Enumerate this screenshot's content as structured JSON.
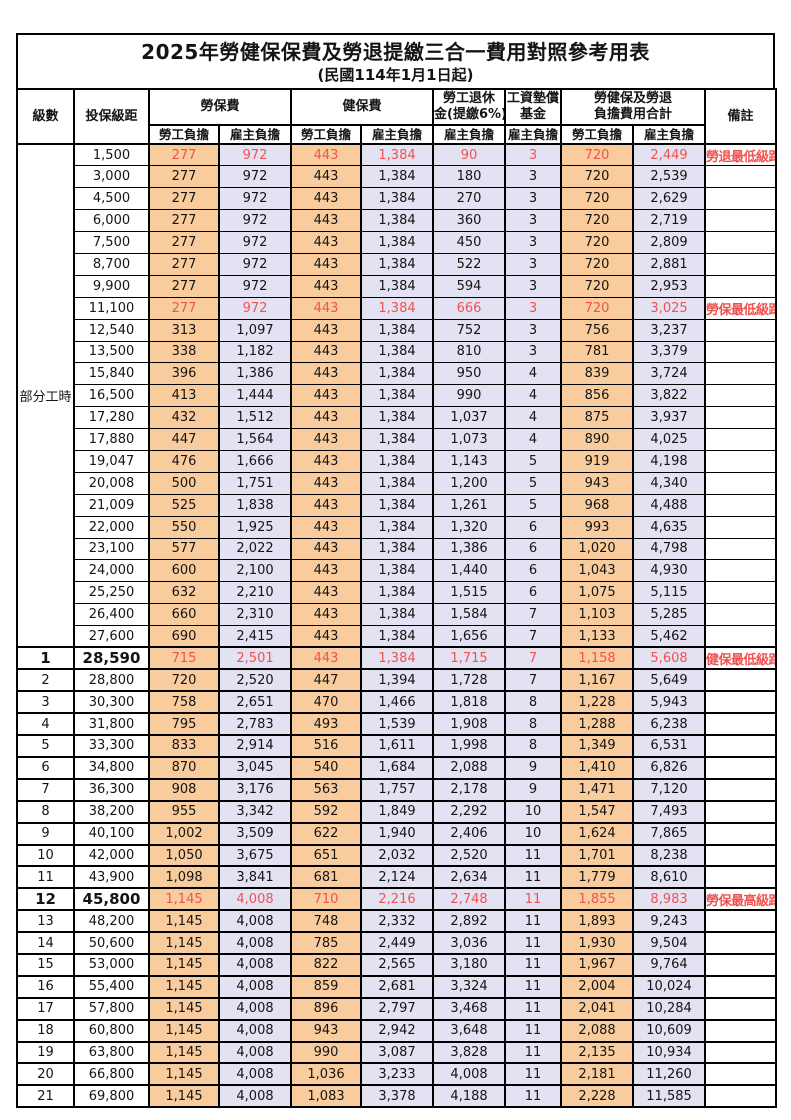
{
  "title": "2025年勞健保保費及勞退提繳三合一費用對照參考用表",
  "subtitle": "(民國114年1月1日起)",
  "header": {
    "level": "級數",
    "bracket": "投保級距",
    "labor_ins": "勞保費",
    "health_ins": "健保費",
    "pension_line1": "勞工退休",
    "pension_line2": "金(提繳6%)",
    "wage_fund_line1": "工資墊償",
    "wage_fund_line2": "基金",
    "total_line1": "勞健保及勞退",
    "total_line2": "負擔費用合計",
    "note": "備註",
    "employee_label": "勞工負擔",
    "employer_label": "雇主負擔"
  },
  "part_time_label": "部分工時",
  "colors": {
    "employee_bg": "#F9CC9D",
    "employer_bg": "#E2E2F2",
    "highlight_red": "#F0534F",
    "grid_line": "#000000"
  },
  "rows": [
    {
      "lv": "",
      "br": "1,500",
      "v": [
        "277",
        "972",
        "443",
        "1,384",
        "90",
        "3",
        "720",
        "2,449"
      ],
      "note": "勞退最低級距",
      "red": true,
      "bold": false
    },
    {
      "lv": "",
      "br": "3,000",
      "v": [
        "277",
        "972",
        "443",
        "1,384",
        "180",
        "3",
        "720",
        "2,539"
      ],
      "note": "",
      "red": false,
      "bold": false
    },
    {
      "lv": "",
      "br": "4,500",
      "v": [
        "277",
        "972",
        "443",
        "1,384",
        "270",
        "3",
        "720",
        "2,629"
      ],
      "note": "",
      "red": false,
      "bold": false
    },
    {
      "lv": "",
      "br": "6,000",
      "v": [
        "277",
        "972",
        "443",
        "1,384",
        "360",
        "3",
        "720",
        "2,719"
      ],
      "note": "",
      "red": false,
      "bold": false
    },
    {
      "lv": "",
      "br": "7,500",
      "v": [
        "277",
        "972",
        "443",
        "1,384",
        "450",
        "3",
        "720",
        "2,809"
      ],
      "note": "",
      "red": false,
      "bold": false
    },
    {
      "lv": "",
      "br": "8,700",
      "v": [
        "277",
        "972",
        "443",
        "1,384",
        "522",
        "3",
        "720",
        "2,881"
      ],
      "note": "",
      "red": false,
      "bold": false
    },
    {
      "lv": "",
      "br": "9,900",
      "v": [
        "277",
        "972",
        "443",
        "1,384",
        "594",
        "3",
        "720",
        "2,953"
      ],
      "note": "",
      "red": false,
      "bold": false
    },
    {
      "lv": "",
      "br": "11,100",
      "v": [
        "277",
        "972",
        "443",
        "1,384",
        "666",
        "3",
        "720",
        "3,025"
      ],
      "note": "勞保最低級距",
      "red": true,
      "bold": false
    },
    {
      "lv": "",
      "br": "12,540",
      "v": [
        "313",
        "1,097",
        "443",
        "1,384",
        "752",
        "3",
        "756",
        "3,237"
      ],
      "note": "",
      "red": false,
      "bold": false
    },
    {
      "lv": "",
      "br": "13,500",
      "v": [
        "338",
        "1,182",
        "443",
        "1,384",
        "810",
        "3",
        "781",
        "3,379"
      ],
      "note": "",
      "red": false,
      "bold": false
    },
    {
      "lv": "",
      "br": "15,840",
      "v": [
        "396",
        "1,386",
        "443",
        "1,384",
        "950",
        "4",
        "839",
        "3,724"
      ],
      "note": "",
      "red": false,
      "bold": false
    },
    {
      "lv": "",
      "br": "16,500",
      "v": [
        "413",
        "1,444",
        "443",
        "1,384",
        "990",
        "4",
        "856",
        "3,822"
      ],
      "note": "",
      "red": false,
      "bold": false
    },
    {
      "lv": "",
      "br": "17,280",
      "v": [
        "432",
        "1,512",
        "443",
        "1,384",
        "1,037",
        "4",
        "875",
        "3,937"
      ],
      "note": "",
      "red": false,
      "bold": false
    },
    {
      "lv": "",
      "br": "17,880",
      "v": [
        "447",
        "1,564",
        "443",
        "1,384",
        "1,073",
        "4",
        "890",
        "4,025"
      ],
      "note": "",
      "red": false,
      "bold": false
    },
    {
      "lv": "",
      "br": "19,047",
      "v": [
        "476",
        "1,666",
        "443",
        "1,384",
        "1,143",
        "5",
        "919",
        "4,198"
      ],
      "note": "",
      "red": false,
      "bold": false
    },
    {
      "lv": "",
      "br": "20,008",
      "v": [
        "500",
        "1,751",
        "443",
        "1,384",
        "1,200",
        "5",
        "943",
        "4,340"
      ],
      "note": "",
      "red": false,
      "bold": false
    },
    {
      "lv": "",
      "br": "21,009",
      "v": [
        "525",
        "1,838",
        "443",
        "1,384",
        "1,261",
        "5",
        "968",
        "4,488"
      ],
      "note": "",
      "red": false,
      "bold": false
    },
    {
      "lv": "",
      "br": "22,000",
      "v": [
        "550",
        "1,925",
        "443",
        "1,384",
        "1,320",
        "6",
        "993",
        "4,635"
      ],
      "note": "",
      "red": false,
      "bold": false
    },
    {
      "lv": "",
      "br": "23,100",
      "v": [
        "577",
        "2,022",
        "443",
        "1,384",
        "1,386",
        "6",
        "1,020",
        "4,798"
      ],
      "note": "",
      "red": false,
      "bold": false
    },
    {
      "lv": "",
      "br": "24,000",
      "v": [
        "600",
        "2,100",
        "443",
        "1,384",
        "1,440",
        "6",
        "1,043",
        "4,930"
      ],
      "note": "",
      "red": false,
      "bold": false
    },
    {
      "lv": "",
      "br": "25,250",
      "v": [
        "632",
        "2,210",
        "443",
        "1,384",
        "1,515",
        "6",
        "1,075",
        "5,115"
      ],
      "note": "",
      "red": false,
      "bold": false
    },
    {
      "lv": "",
      "br": "26,400",
      "v": [
        "660",
        "2,310",
        "443",
        "1,384",
        "1,584",
        "7",
        "1,103",
        "5,285"
      ],
      "note": "",
      "red": false,
      "bold": false
    },
    {
      "lv": "",
      "br": "27,600",
      "v": [
        "690",
        "2,415",
        "443",
        "1,384",
        "1,656",
        "7",
        "1,133",
        "5,462"
      ],
      "note": "",
      "red": false,
      "bold": false
    },
    {
      "lv": "1",
      "br": "28,590",
      "v": [
        "715",
        "2,501",
        "443",
        "1,384",
        "1,715",
        "7",
        "1,158",
        "5,608"
      ],
      "note": "健保最低級距",
      "red": true,
      "bold": true
    },
    {
      "lv": "2",
      "br": "28,800",
      "v": [
        "720",
        "2,520",
        "447",
        "1,394",
        "1,728",
        "7",
        "1,167",
        "5,649"
      ],
      "note": "",
      "red": false,
      "bold": false
    },
    {
      "lv": "3",
      "br": "30,300",
      "v": [
        "758",
        "2,651",
        "470",
        "1,466",
        "1,818",
        "8",
        "1,228",
        "5,943"
      ],
      "note": "",
      "red": false,
      "bold": false
    },
    {
      "lv": "4",
      "br": "31,800",
      "v": [
        "795",
        "2,783",
        "493",
        "1,539",
        "1,908",
        "8",
        "1,288",
        "6,238"
      ],
      "note": "",
      "red": false,
      "bold": false
    },
    {
      "lv": "5",
      "br": "33,300",
      "v": [
        "833",
        "2,914",
        "516",
        "1,611",
        "1,998",
        "8",
        "1,349",
        "6,531"
      ],
      "note": "",
      "red": false,
      "bold": false
    },
    {
      "lv": "6",
      "br": "34,800",
      "v": [
        "870",
        "3,045",
        "540",
        "1,684",
        "2,088",
        "9",
        "1,410",
        "6,826"
      ],
      "note": "",
      "red": false,
      "bold": false
    },
    {
      "lv": "7",
      "br": "36,300",
      "v": [
        "908",
        "3,176",
        "563",
        "1,757",
        "2,178",
        "9",
        "1,471",
        "7,120"
      ],
      "note": "",
      "red": false,
      "bold": false
    },
    {
      "lv": "8",
      "br": "38,200",
      "v": [
        "955",
        "3,342",
        "592",
        "1,849",
        "2,292",
        "10",
        "1,547",
        "7,493"
      ],
      "note": "",
      "red": false,
      "bold": false
    },
    {
      "lv": "9",
      "br": "40,100",
      "v": [
        "1,002",
        "3,509",
        "622",
        "1,940",
        "2,406",
        "10",
        "1,624",
        "7,865"
      ],
      "note": "",
      "red": false,
      "bold": false
    },
    {
      "lv": "10",
      "br": "42,000",
      "v": [
        "1,050",
        "3,675",
        "651",
        "2,032",
        "2,520",
        "11",
        "1,701",
        "8,238"
      ],
      "note": "",
      "red": false,
      "bold": false
    },
    {
      "lv": "11",
      "br": "43,900",
      "v": [
        "1,098",
        "3,841",
        "681",
        "2,124",
        "2,634",
        "11",
        "1,779",
        "8,610"
      ],
      "note": "",
      "red": false,
      "bold": false
    },
    {
      "lv": "12",
      "br": "45,800",
      "v": [
        "1,145",
        "4,008",
        "710",
        "2,216",
        "2,748",
        "11",
        "1,855",
        "8,983"
      ],
      "note": "勞保最高級距",
      "red": true,
      "bold": true
    },
    {
      "lv": "13",
      "br": "48,200",
      "v": [
        "1,145",
        "4,008",
        "748",
        "2,332",
        "2,892",
        "11",
        "1,893",
        "9,243"
      ],
      "note": "",
      "red": false,
      "bold": false
    },
    {
      "lv": "14",
      "br": "50,600",
      "v": [
        "1,145",
        "4,008",
        "785",
        "2,449",
        "3,036",
        "11",
        "1,930",
        "9,504"
      ],
      "note": "",
      "red": false,
      "bold": false
    },
    {
      "lv": "15",
      "br": "53,000",
      "v": [
        "1,145",
        "4,008",
        "822",
        "2,565",
        "3,180",
        "11",
        "1,967",
        "9,764"
      ],
      "note": "",
      "red": false,
      "bold": false
    },
    {
      "lv": "16",
      "br": "55,400",
      "v": [
        "1,145",
        "4,008",
        "859",
        "2,681",
        "3,324",
        "11",
        "2,004",
        "10,024"
      ],
      "note": "",
      "red": false,
      "bold": false
    },
    {
      "lv": "17",
      "br": "57,800",
      "v": [
        "1,145",
        "4,008",
        "896",
        "2,797",
        "3,468",
        "11",
        "2,041",
        "10,284"
      ],
      "note": "",
      "red": false,
      "bold": false
    },
    {
      "lv": "18",
      "br": "60,800",
      "v": [
        "1,145",
        "4,008",
        "943",
        "2,942",
        "3,648",
        "11",
        "2,088",
        "10,609"
      ],
      "note": "",
      "red": false,
      "bold": false
    },
    {
      "lv": "19",
      "br": "63,800",
      "v": [
        "1,145",
        "4,008",
        "990",
        "3,087",
        "3,828",
        "11",
        "2,135",
        "10,934"
      ],
      "note": "",
      "red": false,
      "bold": false
    },
    {
      "lv": "20",
      "br": "66,800",
      "v": [
        "1,145",
        "4,008",
        "1,036",
        "3,233",
        "4,008",
        "11",
        "2,181",
        "11,260"
      ],
      "note": "",
      "red": false,
      "bold": false
    },
    {
      "lv": "21",
      "br": "69,800",
      "v": [
        "1,145",
        "4,008",
        "1,083",
        "3,378",
        "4,188",
        "11",
        "2,228",
        "11,585"
      ],
      "note": "",
      "red": false,
      "bold": false
    }
  ]
}
